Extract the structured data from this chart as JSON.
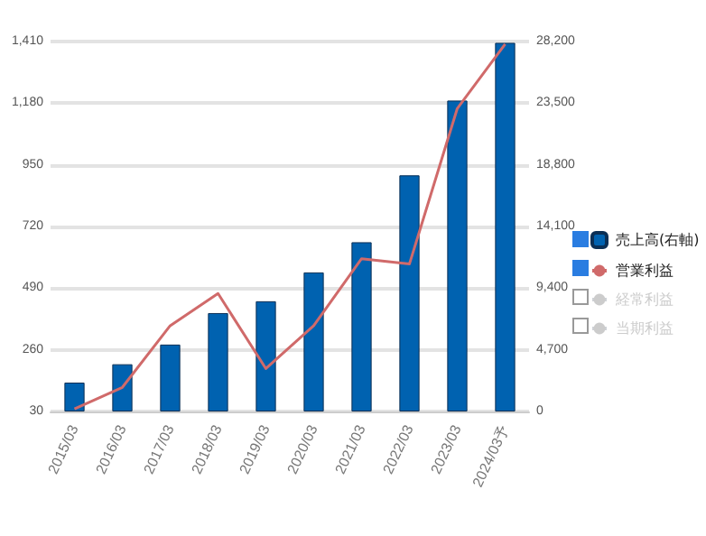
{
  "chart_data": {
    "type": "bar",
    "categories": [
      "2015/03",
      "2016/03",
      "2017/03",
      "2018/03",
      "2019/03",
      "2020/03",
      "2021/03",
      "2022/03",
      "2023/03",
      "2024/03予"
    ],
    "series": [
      {
        "name": "売上高(右軸)",
        "axis": "y2",
        "color": "#0062b0",
        "values": [
          2200,
          3600,
          5100,
          7500,
          8400,
          10600,
          12900,
          18000,
          23700,
          28100
        ]
      },
      {
        "name": "営業利益",
        "type": "line",
        "color": "#d06a6a",
        "values": [
          40,
          120,
          350,
          470,
          190,
          350,
          600,
          580,
          1160,
          1400
        ]
      },
      {
        "name": "経常利益",
        "type": "line",
        "values": [
          null,
          null,
          null,
          null,
          null,
          null,
          null,
          null,
          null,
          null
        ]
      },
      {
        "name": "当期利益",
        "type": "line",
        "values": [
          null,
          null,
          null,
          null,
          null,
          null,
          null,
          null,
          null,
          null
        ]
      }
    ],
    "ylim": [
      30,
      1410
    ],
    "yticks": [
      30,
      260,
      490,
      720,
      950,
      {
        "value": 1180,
        "label": "1,180"
      },
      {
        "value": 1410,
        "label": "1,410"
      }
    ],
    "y2lim": [
      0,
      28200
    ],
    "y2ticks": [
      0,
      {
        "value": 4700,
        "label": "4,700"
      },
      {
        "value": 9400,
        "label": "9,400"
      },
      {
        "value": 14100,
        "label": "14,100"
      },
      {
        "value": 18800,
        "label": "18,800"
      },
      {
        "value": 23500,
        "label": "23,500"
      },
      {
        "value": 28200,
        "label": "28,200"
      }
    ],
    "grid": "y",
    "legend": "right",
    "marker": "none",
    "line_style": "solid"
  }
}
